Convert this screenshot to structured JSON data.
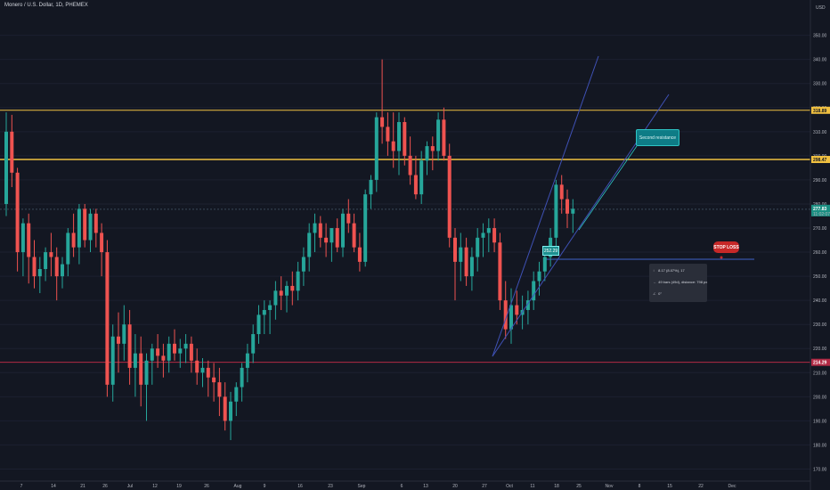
{
  "header": {
    "symbol_title": "Monero / U.S. Dollar, 1D, PHEMEX"
  },
  "axis": {
    "currency": "USD",
    "y_ticks": [
      "350.00",
      "340.00",
      "330.00",
      "320.00",
      "310.00",
      "300.00",
      "290.00",
      "280.00",
      "270.00",
      "260.00",
      "250.00",
      "240.00",
      "230.00",
      "220.00",
      "210.00",
      "200.00",
      "190.00",
      "180.00",
      "170.00"
    ],
    "x_ticks": [
      "7",
      "14",
      "21",
      "26",
      "Jul",
      "12",
      "19",
      "26",
      "Aug",
      "9",
      "16",
      "23",
      "Sep",
      "6",
      "13",
      "20",
      "27",
      "Oct",
      "11",
      "18",
      "25",
      "Nov",
      "8",
      "15",
      "22",
      "Dec"
    ],
    "price_tags": {
      "resistance_top": "318.89",
      "resistance_second": "298.47",
      "current_price": "277.83",
      "current_sub": "11:02:07",
      "support": "214.29"
    }
  },
  "annotations": {
    "second_resistance_label": "Second resistance",
    "stop_loss_label": "STOP LOSS",
    "entry_price_label": "252.29",
    "measure": {
      "row1": "8.17 (8.07%), 17",
      "row2": "49 bars (49d), distance: 798 px",
      "row3": "0°"
    }
  },
  "colors": {
    "background": "#131722",
    "up_candle": "#26a69a",
    "down_candle": "#ef5350",
    "resistance_line": "#f0c040",
    "support_line": "#b22a45",
    "trend_line": "#3f51b5"
  },
  "chart_data": {
    "type": "candlestick",
    "title": "Monero / U.S. Dollar, 1D, PHEMEX",
    "y_unit": "USD",
    "ylim": [
      165,
      358
    ],
    "horizontal_levels": [
      318.89,
      298.47,
      277.83,
      214.29
    ],
    "ohlc": [
      [
        280,
        318,
        275,
        310
      ],
      [
        310,
        317,
        287,
        293
      ],
      [
        293,
        295,
        252,
        260
      ],
      [
        260,
        274,
        250,
        272
      ],
      [
        272,
        276,
        247,
        258
      ],
      [
        258,
        265,
        245,
        250
      ],
      [
        250,
        258,
        243,
        253
      ],
      [
        253,
        262,
        248,
        260
      ],
      [
        260,
        268,
        250,
        258
      ],
      [
        258,
        262,
        240,
        250
      ],
      [
        250,
        258,
        245,
        255
      ],
      [
        255,
        270,
        250,
        268
      ],
      [
        268,
        276,
        258,
        262
      ],
      [
        262,
        280,
        255,
        278
      ],
      [
        278,
        280,
        262,
        265
      ],
      [
        265,
        278,
        260,
        276
      ],
      [
        276,
        278,
        262,
        268
      ],
      [
        268,
        272,
        250,
        260
      ],
      [
        260,
        265,
        200,
        205
      ],
      [
        205,
        230,
        198,
        225
      ],
      [
        225,
        235,
        210,
        222
      ],
      [
        222,
        238,
        215,
        230
      ],
      [
        230,
        236,
        205,
        212
      ],
      [
        212,
        226,
        200,
        218
      ],
      [
        218,
        225,
        196,
        205
      ],
      [
        205,
        218,
        190,
        215
      ],
      [
        215,
        222,
        205,
        220
      ],
      [
        220,
        226,
        212,
        217
      ],
      [
        217,
        222,
        208,
        215
      ],
      [
        215,
        225,
        210,
        222
      ],
      [
        222,
        228,
        215,
        218
      ],
      [
        218,
        224,
        212,
        220
      ],
      [
        220,
        226,
        214,
        222
      ],
      [
        222,
        225,
        210,
        215
      ],
      [
        215,
        220,
        205,
        210
      ],
      [
        210,
        216,
        204,
        212
      ],
      [
        212,
        215,
        200,
        208
      ],
      [
        208,
        214,
        198,
        206
      ],
      [
        206,
        212,
        192,
        200
      ],
      [
        200,
        206,
        186,
        190
      ],
      [
        190,
        202,
        182,
        198
      ],
      [
        198,
        206,
        192,
        204
      ],
      [
        204,
        214,
        198,
        212
      ],
      [
        212,
        222,
        206,
        218
      ],
      [
        218,
        230,
        214,
        226
      ],
      [
        226,
        238,
        222,
        234
      ],
      [
        234,
        240,
        226,
        236
      ],
      [
        236,
        240,
        226,
        238
      ],
      [
        238,
        248,
        232,
        244
      ],
      [
        244,
        250,
        236,
        242
      ],
      [
        242,
        248,
        235,
        246
      ],
      [
        246,
        252,
        238,
        244
      ],
      [
        244,
        256,
        240,
        252
      ],
      [
        252,
        262,
        246,
        258
      ],
      [
        258,
        272,
        252,
        268
      ],
      [
        268,
        276,
        260,
        272
      ],
      [
        272,
        275,
        262,
        266
      ],
      [
        266,
        272,
        258,
        264
      ],
      [
        264,
        270,
        256,
        270
      ],
      [
        270,
        274,
        260,
        262
      ],
      [
        262,
        278,
        258,
        276
      ],
      [
        276,
        282,
        268,
        272
      ],
      [
        272,
        276,
        260,
        262
      ],
      [
        262,
        268,
        252,
        256
      ],
      [
        256,
        286,
        254,
        284
      ],
      [
        284,
        292,
        278,
        290
      ],
      [
        290,
        318,
        285,
        316
      ],
      [
        316,
        340,
        305,
        312
      ],
      [
        312,
        318,
        300,
        306
      ],
      [
        306,
        318,
        295,
        302
      ],
      [
        302,
        318,
        292,
        314
      ],
      [
        314,
        316,
        296,
        300
      ],
      [
        300,
        308,
        288,
        292
      ],
      [
        292,
        300,
        282,
        284
      ],
      [
        284,
        302,
        280,
        298
      ],
      [
        298,
        306,
        292,
        304
      ],
      [
        304,
        308,
        294,
        302
      ],
      [
        302,
        318,
        298,
        315
      ],
      [
        315,
        320,
        298,
        300
      ],
      [
        300,
        305,
        262,
        266
      ],
      [
        266,
        270,
        240,
        256
      ],
      [
        256,
        268,
        248,
        262
      ],
      [
        262,
        266,
        246,
        250
      ],
      [
        250,
        262,
        244,
        258
      ],
      [
        258,
        270,
        252,
        266
      ],
      [
        266,
        272,
        258,
        268
      ],
      [
        268,
        274,
        260,
        270
      ],
      [
        270,
        274,
        260,
        264
      ],
      [
        264,
        268,
        236,
        240
      ],
      [
        240,
        248,
        224,
        228
      ],
      [
        228,
        245,
        222,
        238
      ],
      [
        238,
        244,
        230,
        234
      ],
      [
        234,
        242,
        228,
        236
      ],
      [
        236,
        244,
        230,
        240
      ],
      [
        240,
        252,
        236,
        248
      ],
      [
        248,
        256,
        242,
        252
      ],
      [
        252,
        262,
        248,
        258
      ],
      [
        258,
        270,
        254,
        266
      ],
      [
        266,
        290,
        262,
        288
      ],
      [
        288,
        292,
        276,
        282
      ],
      [
        282,
        286,
        270,
        276
      ],
      [
        276,
        282,
        268,
        278
      ]
    ]
  }
}
